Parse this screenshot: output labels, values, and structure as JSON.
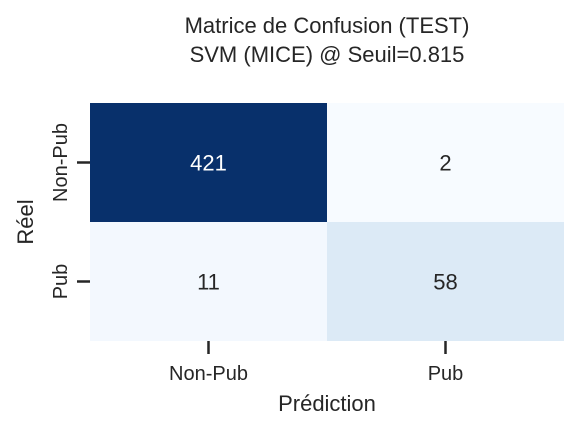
{
  "chart_data": {
    "type": "heatmap",
    "title": "Matrice de Confusion (TEST)\nSVM (MICE) @ Seuil=0.815",
    "title_lines": [
      "Matrice de Confusion (TEST)",
      "SVM (MICE) @ Seuil=0.815"
    ],
    "xlabel": "Prédiction",
    "ylabel": "Réel",
    "x_categories": [
      "Non-Pub",
      "Pub"
    ],
    "y_categories": [
      "Non-Pub",
      "Pub"
    ],
    "values": [
      [
        421,
        2
      ],
      [
        11,
        58
      ]
    ],
    "colormap": "Blues",
    "colorbar": false,
    "grid": false,
    "colors": {
      "low": "#f7fbff",
      "high": "#08306b",
      "text_dark": "#262626",
      "text_light": "#ffffff",
      "tick": "#262626"
    }
  }
}
